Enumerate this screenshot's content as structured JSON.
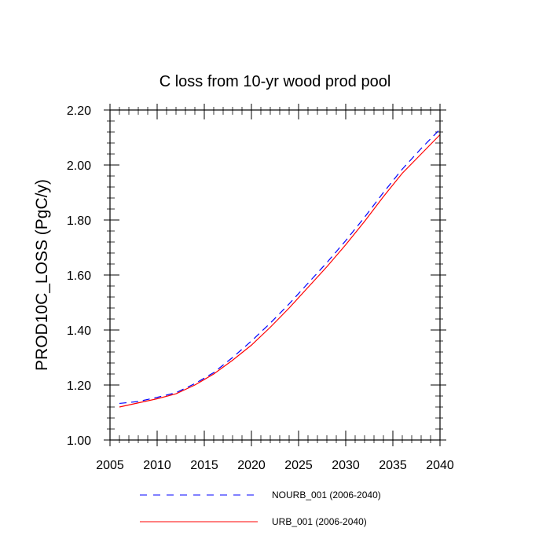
{
  "chart_data": {
    "type": "line",
    "title": "C loss from 10-yr wood prod pool",
    "xlabel": "",
    "ylabel": "PROD10C_LOSS  (PgC/y)",
    "xlim": [
      2005,
      2040
    ],
    "ylim": [
      1.0,
      2.2
    ],
    "x_ticks": [
      2005,
      2010,
      2015,
      2020,
      2025,
      2030,
      2035,
      2040
    ],
    "y_ticks": [
      1.0,
      1.2,
      1.4,
      1.6,
      1.8,
      2.0,
      2.2
    ],
    "x_tick_labels": [
      "2005",
      "2010",
      "2015",
      "2020",
      "2025",
      "2030",
      "2035",
      "2040"
    ],
    "y_tick_labels": [
      "1.00",
      "1.20",
      "1.40",
      "1.60",
      "1.80",
      "2.00",
      "2.20"
    ],
    "legend_position": "bottom",
    "series": [
      {
        "name": "NOURB_001 (2006-2040)",
        "color": "#0000ff",
        "style": "dashed",
        "x": [
          2006,
          2008,
          2010,
          2012,
          2014,
          2016,
          2018,
          2020,
          2022,
          2024,
          2026,
          2028,
          2030,
          2032,
          2034,
          2036,
          2038,
          2040
        ],
        "values": [
          1.133,
          1.14,
          1.155,
          1.172,
          1.205,
          1.245,
          1.3,
          1.36,
          1.425,
          1.495,
          1.57,
          1.645,
          1.725,
          1.81,
          1.9,
          1.985,
          2.06,
          2.13
        ]
      },
      {
        "name": "URB_001 (2006-2040)",
        "color": "#ff0000",
        "style": "solid",
        "x": [
          2006,
          2008,
          2010,
          2012,
          2014,
          2016,
          2018,
          2020,
          2022,
          2024,
          2026,
          2028,
          2030,
          2032,
          2034,
          2036,
          2038,
          2040
        ],
        "values": [
          1.12,
          1.135,
          1.15,
          1.168,
          1.2,
          1.24,
          1.29,
          1.345,
          1.41,
          1.48,
          1.555,
          1.63,
          1.71,
          1.795,
          1.885,
          1.97,
          2.04,
          2.11
        ]
      }
    ]
  }
}
